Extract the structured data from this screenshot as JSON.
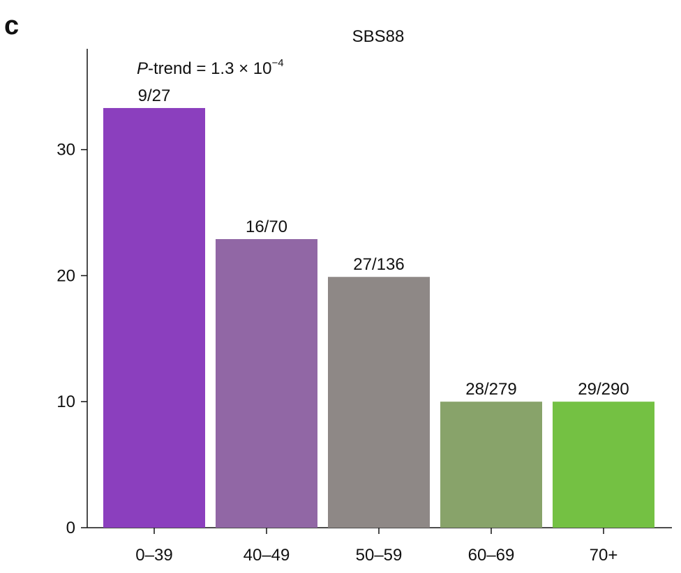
{
  "panel_label": "c",
  "chart_data": {
    "type": "bar",
    "title": "SBS88",
    "annotation": {
      "p_italic": "P",
      "prefix": "-trend = 1.3 × 10",
      "exponent": "−4"
    },
    "categories": [
      "0–39",
      "40–49",
      "50–59",
      "60–69",
      "70+"
    ],
    "values": [
      33.3,
      22.9,
      19.9,
      10.0,
      10.0
    ],
    "bar_labels": [
      "9/27",
      "16/70",
      "27/136",
      "28/279",
      "29/290"
    ],
    "colors": [
      "#8b3fbe",
      "#9167a5",
      "#8e8886",
      "#88a36a",
      "#74c143"
    ],
    "xlabel": "",
    "ylabel": "",
    "ylim": [
      0,
      38
    ],
    "yticks": [
      0,
      10,
      20,
      30
    ],
    "grid": false
  }
}
